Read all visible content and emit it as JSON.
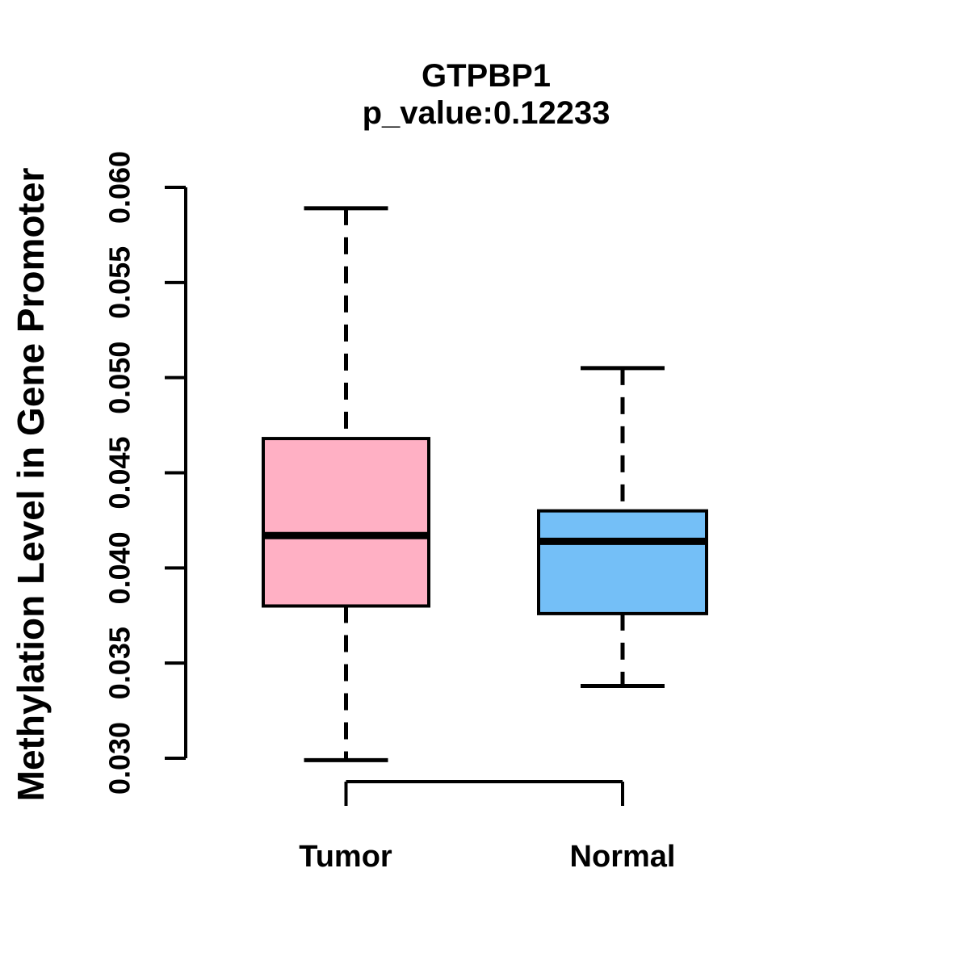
{
  "chart_data": {
    "type": "boxplot",
    "title": "GTPBP1",
    "subtitle": "p_value:0.12233",
    "ylabel": "Methylation Level in Gene Promoter",
    "xlabel": "",
    "ylim": [
      0.03,
      0.06
    ],
    "yticks": [
      0.03,
      0.035,
      0.04,
      0.045,
      0.05,
      0.055,
      0.06
    ],
    "ytick_labels": [
      "0.030",
      "0.035",
      "0.040",
      "0.045",
      "0.050",
      "0.055",
      "0.060"
    ],
    "categories": [
      "Tumor",
      "Normal"
    ],
    "grid": "off",
    "legend": "none",
    "series": [
      {
        "name": "Tumor",
        "fill_color": "#FFB0C4",
        "whisker_low": 0.0299,
        "q1": 0.038,
        "median": 0.0417,
        "q3": 0.0468,
        "whisker_high": 0.0589
      },
      {
        "name": "Normal",
        "fill_color": "#74BFF7",
        "whisker_low": 0.0338,
        "q1": 0.0376,
        "median": 0.0414,
        "q3": 0.043,
        "whisker_high": 0.0505
      }
    ],
    "line_color": "#000000",
    "background_color": "#FFFFFF"
  }
}
